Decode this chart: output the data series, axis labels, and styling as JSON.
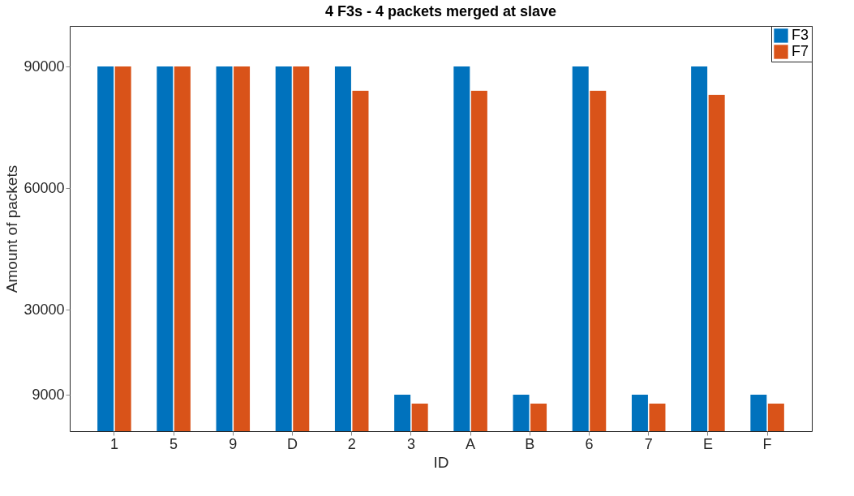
{
  "chart_data": {
    "type": "bar",
    "title": "4 F3s - 4 packets merged at slave",
    "xlabel": "ID",
    "ylabel": "Amount of packets",
    "categories": [
      "1",
      "5",
      "9",
      "D",
      "2",
      "3",
      "A",
      "B",
      "6",
      "7",
      "E",
      "F"
    ],
    "series": [
      {
        "name": "F3",
        "color": "#0072bd",
        "values": [
          90000,
          90000,
          90000,
          90000,
          90000,
          9000,
          90000,
          9000,
          90000,
          9000,
          90000,
          9000
        ]
      },
      {
        "name": "F7",
        "color": "#d95319",
        "values": [
          90000,
          90000,
          90000,
          90000,
          84000,
          6800,
          84000,
          6800,
          84000,
          6800,
          83000,
          6800
        ]
      }
    ],
    "ylim": [
      0,
      100000
    ],
    "yticks": [
      9000,
      30000,
      60000,
      90000
    ],
    "grid": false,
    "legend": "top right"
  }
}
